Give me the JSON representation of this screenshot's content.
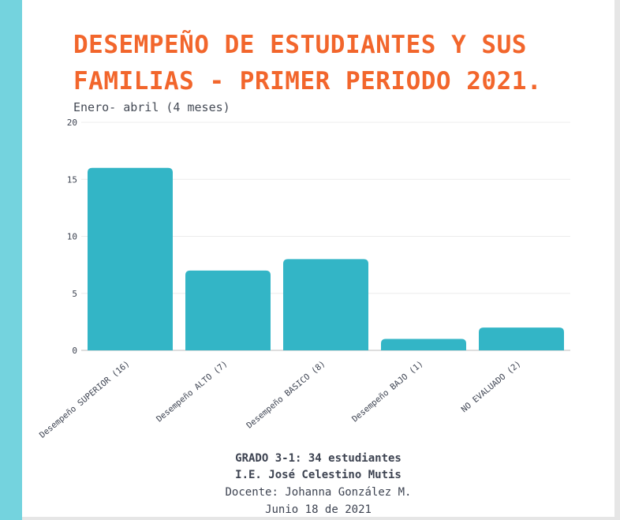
{
  "title": "DESEMPEÑO DE ESTUDIANTES Y SUS FAMILIAS - PRIMER PERIODO 2021.",
  "subtitle": "Enero- abril (4 meses)",
  "colors": {
    "bar": "#33b5c6",
    "title": "#f2662c",
    "stripe": "#74d3de",
    "text": "#3d4351"
  },
  "chart_data": {
    "type": "bar",
    "categories": [
      "Desempeño SUPERIOR (16)",
      "Desempeño ALTO (7)",
      "Desempeño BASICO (8)",
      "Desempeño BAJO (1)",
      "NO EVALUADO (2)"
    ],
    "values": [
      16,
      7,
      8,
      1,
      2
    ],
    "ylim": [
      0,
      20
    ],
    "yticks": [
      0,
      5,
      10,
      15,
      20
    ],
    "grid": true,
    "legend": "none",
    "xlabel": "",
    "ylabel": ""
  },
  "footer": {
    "grade": "GRADO 3-1: 34 estudiantes",
    "school": "I.E. José Celestino Mutis",
    "teacher": "Docente: Johanna González M.",
    "date": "Junio 18 de 2021"
  }
}
